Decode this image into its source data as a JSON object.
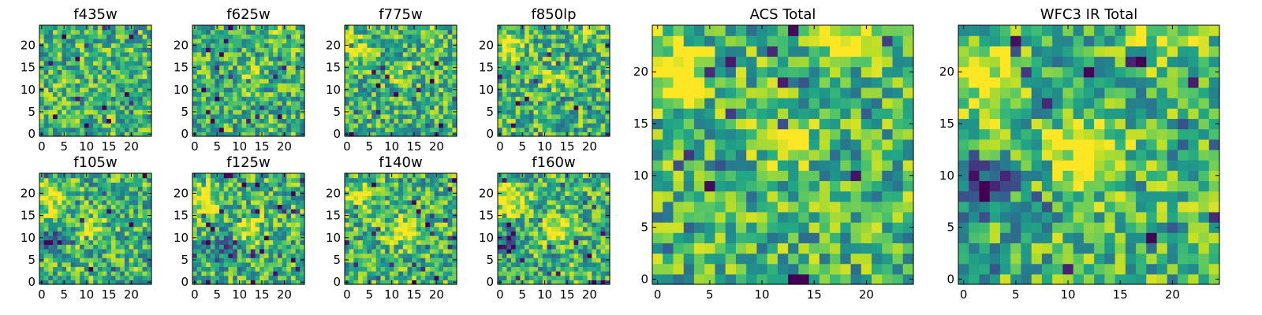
{
  "chart_data": [
    {
      "type": "heatmap",
      "title": "f435w",
      "xticks": [
        0,
        5,
        10,
        15,
        20
      ],
      "yticks": [
        0,
        5,
        10,
        15,
        20
      ],
      "xlim": [
        0,
        25
      ],
      "ylim": [
        0,
        25
      ],
      "grid_size": [
        25,
        25
      ],
      "colormap": "viridis",
      "seed": 11,
      "blobs": []
    },
    {
      "type": "heatmap",
      "title": "f625w",
      "xticks": [
        0,
        5,
        10,
        15,
        20
      ],
      "yticks": [
        0,
        5,
        10,
        15,
        20
      ],
      "xlim": [
        0,
        25
      ],
      "ylim": [
        0,
        25
      ],
      "grid_size": [
        25,
        25
      ],
      "colormap": "viridis",
      "seed": 23,
      "blobs": [
        {
          "x": 12,
          "y": 13,
          "s": 1.6,
          "a": 0.25
        },
        {
          "x": 19,
          "y": 23,
          "s": 1.5,
          "a": 0.3
        }
      ]
    },
    {
      "type": "heatmap",
      "title": "f775w",
      "xticks": [
        0,
        5,
        10,
        15,
        20
      ],
      "yticks": [
        0,
        5,
        10,
        15,
        20
      ],
      "xlim": [
        0,
        25
      ],
      "ylim": [
        0,
        25
      ],
      "grid_size": [
        25,
        25
      ],
      "colormap": "viridis",
      "seed": 37,
      "blobs": [
        {
          "x": 2,
          "y": 20,
          "s": 2.0,
          "a": 0.4
        },
        {
          "x": 18,
          "y": 23,
          "s": 1.4,
          "a": 0.35
        },
        {
          "x": 12,
          "y": 13,
          "s": 1.5,
          "a": 0.25
        }
      ]
    },
    {
      "type": "heatmap",
      "title": "f850lp",
      "xticks": [
        0,
        5,
        10,
        15,
        20
      ],
      "yticks": [
        0,
        5,
        10,
        15,
        20
      ],
      "xlim": [
        0,
        25
      ],
      "ylim": [
        0,
        25
      ],
      "grid_size": [
        25,
        25
      ],
      "colormap": "viridis",
      "seed": 41,
      "blobs": [
        {
          "x": 2,
          "y": 20,
          "s": 2.0,
          "a": 0.45
        },
        {
          "x": 19,
          "y": 23,
          "s": 1.4,
          "a": 0.4
        },
        {
          "x": 12,
          "y": 13,
          "s": 1.5,
          "a": 0.3
        }
      ]
    },
    {
      "type": "heatmap",
      "title": "f105w",
      "xticks": [
        0,
        5,
        10,
        15,
        20
      ],
      "yticks": [
        0,
        5,
        10,
        15,
        20
      ],
      "xlim": [
        0,
        25
      ],
      "ylim": [
        0,
        25
      ],
      "grid_size": [
        25,
        25
      ],
      "colormap": "viridis",
      "seed": 53,
      "blobs": [
        {
          "x": 2,
          "y": 19,
          "s": 2.5,
          "a": 0.4
        },
        {
          "x": 12,
          "y": 12,
          "s": 2.0,
          "a": 0.3
        },
        {
          "x": 2,
          "y": 9,
          "s": 1.8,
          "a": -0.45
        }
      ]
    },
    {
      "type": "heatmap",
      "title": "f125w",
      "xticks": [
        0,
        5,
        10,
        15,
        20
      ],
      "yticks": [
        0,
        5,
        10,
        15,
        20
      ],
      "xlim": [
        0,
        25
      ],
      "ylim": [
        0,
        25
      ],
      "grid_size": [
        25,
        25
      ],
      "colormap": "viridis",
      "seed": 67,
      "blobs": [
        {
          "x": 2,
          "y": 19,
          "s": 2.3,
          "a": 0.45
        },
        {
          "x": 12,
          "y": 12,
          "s": 2.0,
          "a": 0.4
        },
        {
          "x": 7,
          "y": 7,
          "s": 2.5,
          "a": -0.3
        }
      ]
    },
    {
      "type": "heatmap",
      "title": "f140w",
      "xticks": [
        0,
        5,
        10,
        15,
        20
      ],
      "yticks": [
        0,
        5,
        10,
        15,
        20
      ],
      "xlim": [
        0,
        25
      ],
      "ylim": [
        0,
        25
      ],
      "grid_size": [
        25,
        25
      ],
      "colormap": "viridis",
      "seed": 71,
      "blobs": [
        {
          "x": 2,
          "y": 19,
          "s": 2.5,
          "a": 0.3
        },
        {
          "x": 12,
          "y": 12,
          "s": 2.2,
          "a": 0.35
        }
      ]
    },
    {
      "type": "heatmap",
      "title": "f160w",
      "xticks": [
        0,
        5,
        10,
        15,
        20
      ],
      "yticks": [
        0,
        5,
        10,
        15,
        20
      ],
      "xlim": [
        0,
        25
      ],
      "ylim": [
        0,
        25
      ],
      "grid_size": [
        25,
        25
      ],
      "colormap": "viridis",
      "seed": 83,
      "blobs": [
        {
          "x": 2,
          "y": 19,
          "s": 2.3,
          "a": 0.45
        },
        {
          "x": 12,
          "y": 12,
          "s": 2.0,
          "a": 0.45
        },
        {
          "x": 2,
          "y": 9,
          "s": 1.6,
          "a": -0.5
        }
      ]
    },
    {
      "type": "heatmap",
      "title": "ACS Total",
      "xticks": [
        0,
        5,
        10,
        15,
        20
      ],
      "yticks": [
        0,
        5,
        10,
        15,
        20
      ],
      "xlim": [
        0,
        25
      ],
      "ylim": [
        0,
        25
      ],
      "grid_size": [
        25,
        25
      ],
      "colormap": "viridis",
      "seed": 97,
      "blobs": [
        {
          "x": 2,
          "y": 20,
          "s": 2.0,
          "a": 0.55
        },
        {
          "x": 18,
          "y": 23,
          "s": 1.5,
          "a": 0.55
        },
        {
          "x": 12,
          "y": 13,
          "s": 1.5,
          "a": 0.4
        }
      ]
    },
    {
      "type": "heatmap",
      "title": "WFC3 IR Total",
      "xticks": [
        0,
        5,
        10,
        15,
        20
      ],
      "yticks": [
        0,
        5,
        10,
        15,
        20
      ],
      "xlim": [
        0,
        25
      ],
      "ylim": [
        0,
        25
      ],
      "grid_size": [
        25,
        25
      ],
      "colormap": "viridis",
      "seed": 109,
      "blobs": [
        {
          "x": 2,
          "y": 19,
          "s": 2.3,
          "a": 0.6
        },
        {
          "x": 12,
          "y": 12,
          "s": 2.2,
          "a": 0.55
        },
        {
          "x": 2,
          "y": 9,
          "s": 1.8,
          "a": -0.6
        },
        {
          "x": 19,
          "y": 23,
          "s": 1.5,
          "a": 0.3
        }
      ]
    }
  ]
}
